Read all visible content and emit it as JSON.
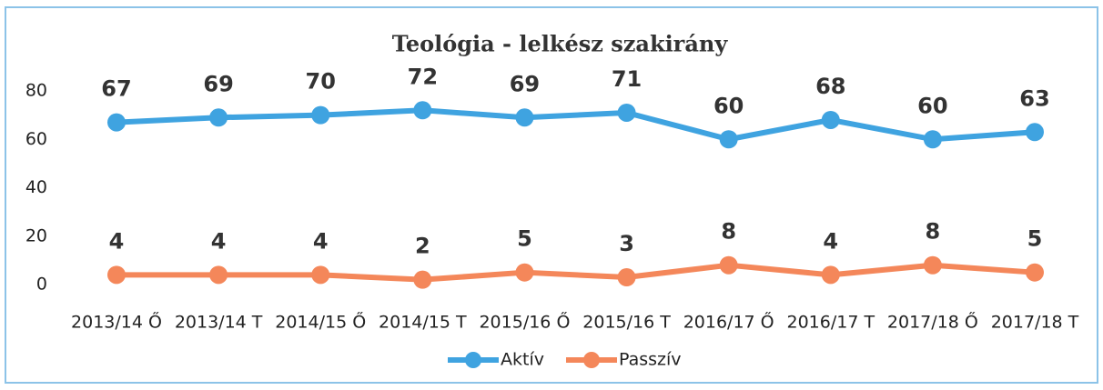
{
  "chart_data": {
    "type": "line",
    "title": "Teológia - lelkész szakirány",
    "categories": [
      "2013/14 Ő",
      "2013/14 T",
      "2014/15 Ő",
      "2014/15 T",
      "2015/16 Ő",
      "2015/16 T",
      "2016/17 Ő",
      "2016/17 T",
      "2017/18 Ő",
      "2017/18 T"
    ],
    "series": [
      {
        "name": "Aktív",
        "color": "#3fa3e0",
        "values": [
          67,
          69,
          70,
          72,
          69,
          71,
          60,
          68,
          60,
          63
        ]
      },
      {
        "name": "Passzív",
        "color": "#f4875a",
        "values": [
          4,
          4,
          4,
          2,
          5,
          3,
          8,
          4,
          8,
          5
        ]
      }
    ],
    "ylim": [
      0,
      80
    ],
    "yticks": [
      0,
      20,
      40,
      60,
      80
    ],
    "grid": false,
    "legend": "bottom"
  }
}
